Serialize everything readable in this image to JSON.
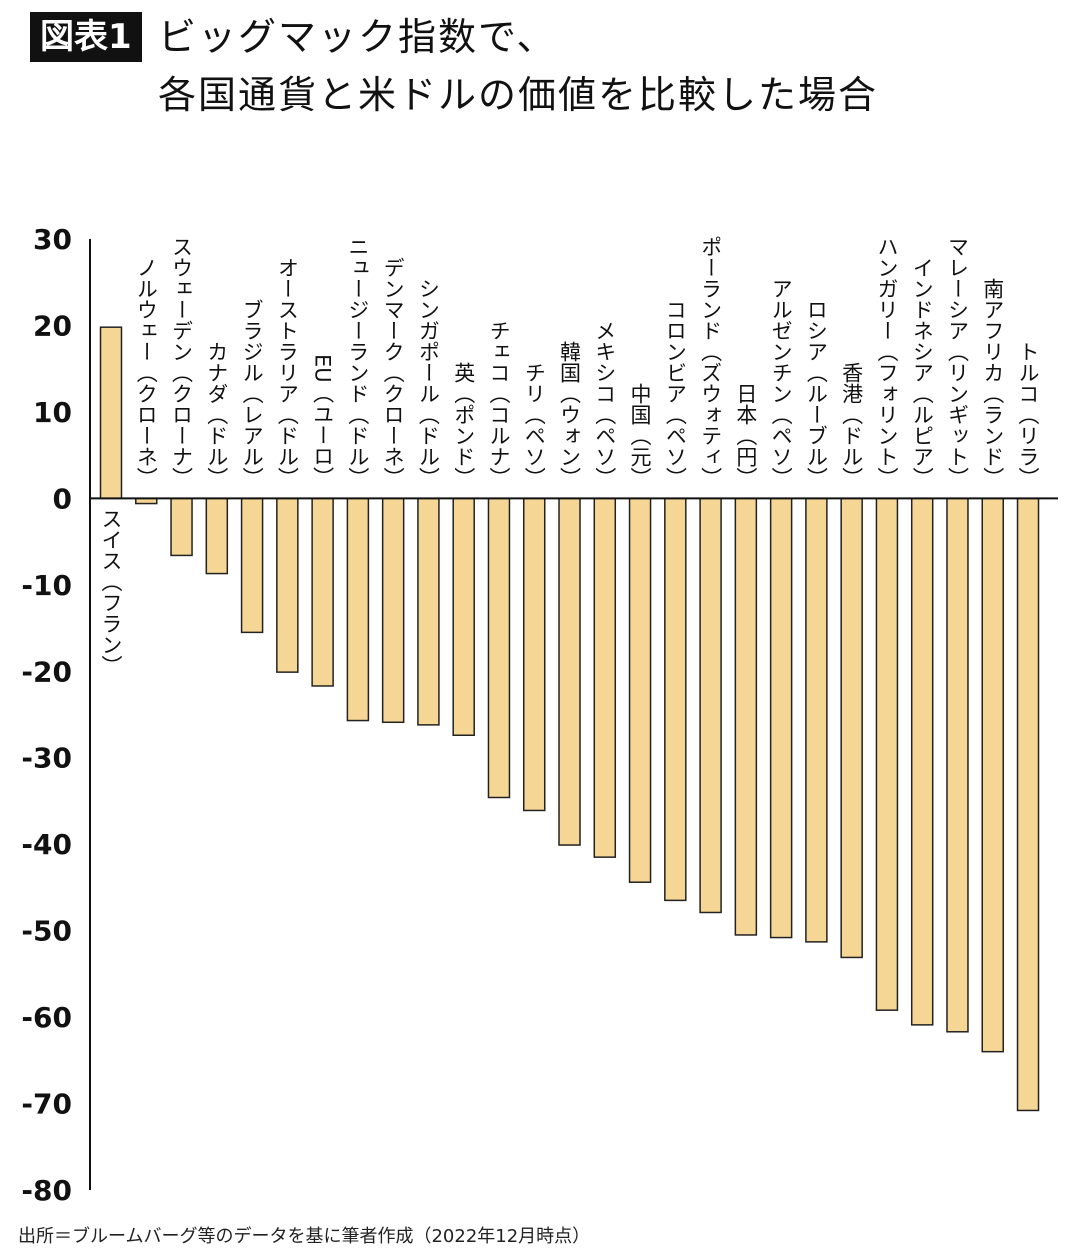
{
  "header": {
    "badge": "図表1",
    "title_line1": "ビッグマック指数で、",
    "title_line2": "各国通貨と米ドルの価値を比較した場合"
  },
  "source": "出所＝ブルームバーグ等のデータを基に筆者作成（2022年12月時点）",
  "colors": {
    "bar": "#f5d694",
    "bar_stroke": "#222222",
    "axis": "#111111"
  },
  "chart_data": {
    "type": "bar",
    "title": "ビッグマック指数で、各国通貨と米ドルの価値を比較した場合",
    "xlabel": "",
    "ylabel": "",
    "ylim": [
      -80,
      30
    ],
    "yticks": [
      30,
      20,
      10,
      0,
      -10,
      -20,
      -30,
      -40,
      -50,
      -60,
      -70,
      -80
    ],
    "grid": false,
    "categories": [
      "スイス（フラン）",
      "ノルウェー（クローネ）",
      "スウェーデン（クローナ）",
      "カナダ（ドル）",
      "ブラジル（レアル）",
      "オーストラリア（ドル）",
      "EU（ユーロ）",
      "ニュージーランド（ドル）",
      "デンマーク（クローネ）",
      "シンガポール（ドル）",
      "英（ポンド）",
      "チェコ（コルナ）",
      "チリ（ペソ）",
      "韓国（ウォン）",
      "メキシコ（ペソ）",
      "中国（元）",
      "コロンビア（ペソ）",
      "ポーランド（ズウォティ）",
      "日本（円）",
      "アルゼンチン（ペソ）",
      "ロシア（ルーブル）",
      "香港（ドル）",
      "ハンガリー（フォリント）",
      "インドネシア（ルピア）",
      "マレーシア（リンギット）",
      "南アフリカ（ランド）",
      "トルコ（リラ）"
    ],
    "values": [
      19.8,
      -0.6,
      -6.6,
      -8.7,
      -15.5,
      -20.1,
      -21.7,
      -25.7,
      -25.9,
      -26.2,
      -27.4,
      -34.6,
      -36.1,
      -40.1,
      -41.5,
      -44.4,
      -46.5,
      -47.9,
      -50.5,
      -50.8,
      -51.3,
      -53.1,
      -59.2,
      -60.9,
      -61.7,
      -64.0,
      -70.8
    ]
  }
}
